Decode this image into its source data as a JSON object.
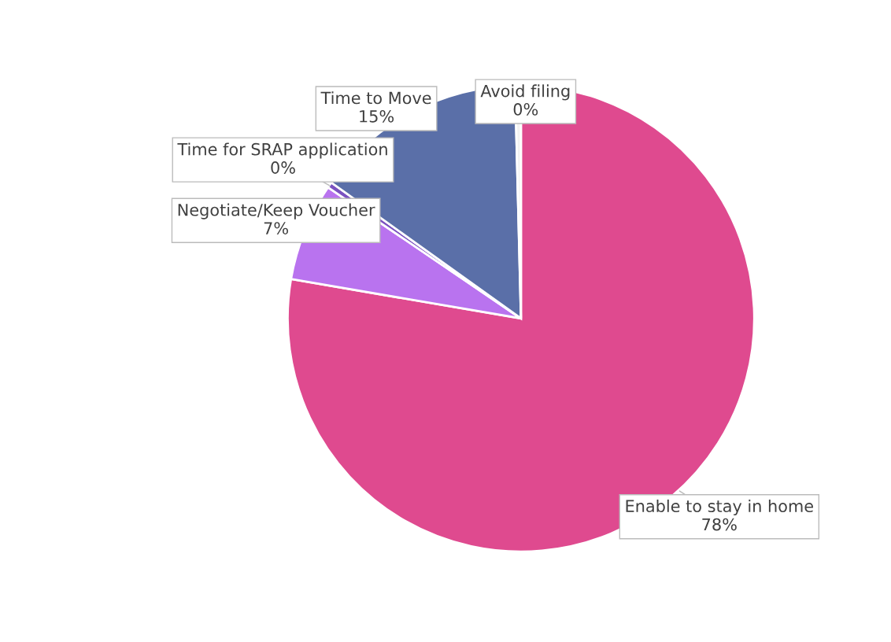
{
  "chart_data": {
    "type": "pie",
    "categories": [
      "Enable to stay in home",
      "Negotiate/Keep Voucher",
      "Time for SRAP application",
      "Time to Move",
      "Avoid filing"
    ],
    "values": [
      77.7,
      6.8,
      0.4,
      14.7,
      0.4
    ],
    "value_labels": [
      "78%",
      "7%",
      "0%",
      "15%",
      "0%"
    ],
    "colors": [
      "#df4a8f",
      "#b973ef",
      "#7b52c0",
      "#5a6fa8",
      "#f2f2f2"
    ]
  }
}
